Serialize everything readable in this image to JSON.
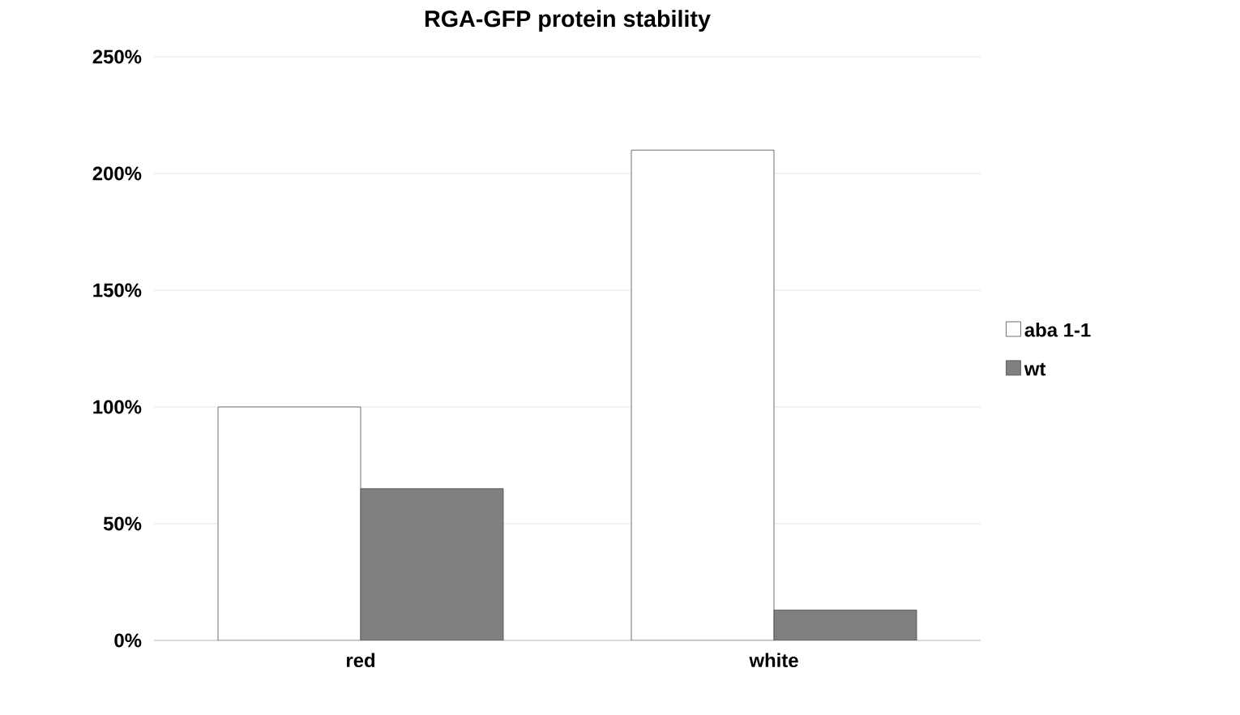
{
  "chart_data": {
    "type": "bar",
    "title": "RGA-GFP protein stability",
    "categories": [
      "red",
      "white"
    ],
    "series": [
      {
        "name": "aba 1-1",
        "color": "#ffffff",
        "values": [
          100,
          210
        ]
      },
      {
        "name": "wt",
        "color": "#808080",
        "values": [
          65,
          13
        ]
      }
    ],
    "ylim": [
      0,
      250
    ],
    "yticks": [
      {
        "value": 0,
        "label": "0%"
      },
      {
        "value": 50,
        "label": "50%"
      },
      {
        "value": 100,
        "label": "100%"
      },
      {
        "value": 150,
        "label": "150%"
      },
      {
        "value": 200,
        "label": "200%"
      },
      {
        "value": 250,
        "label": "250%"
      }
    ],
    "grid": "y",
    "legend": "right"
  }
}
